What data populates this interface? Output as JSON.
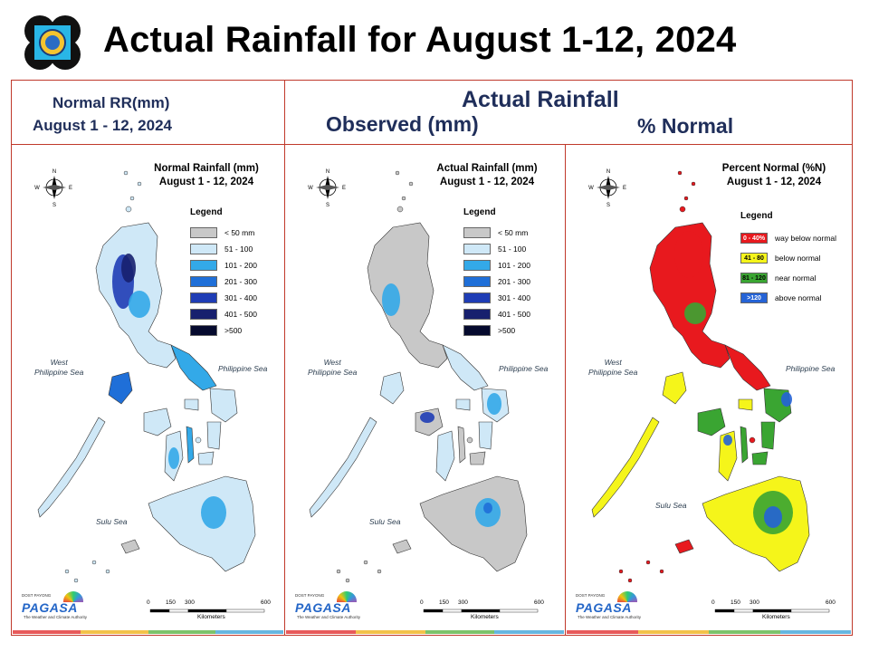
{
  "slide_title": "Actual Rainfall for August 1-12, 2024",
  "headers": {
    "normal_line1": "Normal RR(mm)",
    "normal_line2": "August  1 - 12, 2024",
    "actual_title": "Actual Rainfall",
    "observed": "Observed (mm)",
    "percent_normal": "% Normal"
  },
  "compass": {
    "n": "N",
    "s": "S",
    "e": "E",
    "w": "W"
  },
  "panels": [
    {
      "title_line1": "Normal Rainfall (mm)",
      "title_line2": "August 1 - 12, 2024",
      "legend_title": "Legend",
      "legend": [
        {
          "label": "< 50 mm",
          "color": "#c8c8c8"
        },
        {
          "label": "51 - 100",
          "color": "#cfe8f7"
        },
        {
          "label": "101 - 200",
          "color": "#33a9e8"
        },
        {
          "label": "201 - 300",
          "color": "#1f6fd8"
        },
        {
          "label": "301 - 400",
          "color": "#1f3db5"
        },
        {
          "label": "401 - 500",
          "color": "#17206e"
        },
        {
          "label": ">500",
          "color": "#050a2e"
        }
      ],
      "seas": {
        "west": "West\nPhilippine Sea",
        "east": "Philippine Sea",
        "sulu": "Sulu Sea"
      }
    },
    {
      "title_line1": "Actual Rainfall (mm)",
      "title_line2": "August 1 - 12, 2024",
      "legend_title": "Legend",
      "legend": [
        {
          "label": "< 50 mm",
          "color": "#c8c8c8"
        },
        {
          "label": "51 - 100",
          "color": "#cfe8f7"
        },
        {
          "label": "101 - 200",
          "color": "#33a9e8"
        },
        {
          "label": "201 - 300",
          "color": "#1f6fd8"
        },
        {
          "label": "301 - 400",
          "color": "#1f3db5"
        },
        {
          "label": "401 - 500",
          "color": "#17206e"
        },
        {
          "label": ">500",
          "color": "#050a2e"
        }
      ],
      "seas": {
        "west": "West\nPhilippine Sea",
        "east": "Philippine Sea",
        "sulu": "Sulu Sea"
      }
    },
    {
      "title_line1": "Percent Normal (%N)",
      "title_line2": "August 1 - 12, 2024",
      "legend_title": "Legend",
      "legend": [
        {
          "swatch": "0 - 40%",
          "label": "way below normal",
          "color": "#e8191e"
        },
        {
          "swatch": "41 - 80",
          "label": "below normal",
          "color": "#f5f51a"
        },
        {
          "swatch": "81 - 120",
          "label": "near normal",
          "color": "#3aa532"
        },
        {
          "swatch": ">120",
          "label": "above normal",
          "color": "#2563d6"
        }
      ],
      "seas": {
        "west": "West\nPhilippine Sea",
        "east": "Philippine Sea",
        "sulu": "Sulu Sea"
      }
    }
  ],
  "scale_bar": {
    "ticks": [
      "0",
      "150",
      "300",
      "600"
    ],
    "unit": "Kilometers"
  },
  "agency": {
    "brand": "PAGASA",
    "top": "DOST  PAYONG",
    "tagline": "The Weather and Climate Authority"
  },
  "colors": {
    "frame": "#c0392b",
    "header_text": "#1f2e5a"
  }
}
